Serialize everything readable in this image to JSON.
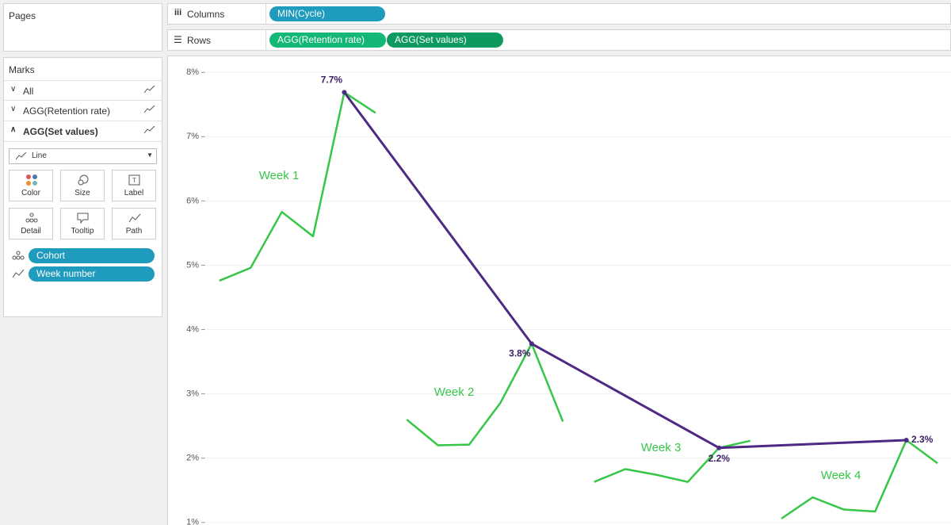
{
  "pages": {
    "title": "Pages"
  },
  "shelves": {
    "columns": {
      "label": "Columns",
      "pills": [
        "MIN(Cycle)"
      ]
    },
    "rows": {
      "label": "Rows",
      "pills": [
        "AGG(Retention rate)",
        "AGG(Set values)"
      ]
    }
  },
  "marks": {
    "title": "Marks",
    "cards": [
      "All",
      "AGG(Retention rate)",
      "AGG(Set values)"
    ],
    "mark_type": "Line",
    "buttons": [
      "Color",
      "Size",
      "Label",
      "Detail",
      "Tooltip",
      "Path"
    ],
    "pills": [
      "Cohort",
      "Week number"
    ]
  },
  "chart_data": {
    "type": "line",
    "ylim": [
      0.96,
      8.25
    ],
    "yticks": [
      {
        "value": 1,
        "label": "1%"
      },
      {
        "value": 2,
        "label": "2%"
      },
      {
        "value": 3,
        "label": "3%"
      },
      {
        "value": 4,
        "label": "4%"
      },
      {
        "value": 5,
        "label": "5%"
      },
      {
        "value": 6,
        "label": "6%"
      },
      {
        "value": 7,
        "label": "7%"
      },
      {
        "value": 8,
        "label": "8%"
      }
    ],
    "xlim": [
      -0.62,
      24.43
    ],
    "grid": true,
    "series": [
      {
        "name": "Week 1",
        "color": "#36c648",
        "x": [
          1,
          2,
          3,
          4,
          5,
          6
        ],
        "values": [
          4.76,
          4.96,
          5.83,
          5.45,
          7.69,
          7.37
        ]
      },
      {
        "name": "Week 2",
        "color": "#36c648",
        "x": [
          7,
          8,
          9,
          10,
          11,
          12
        ],
        "values": [
          2.6,
          2.2,
          2.21,
          2.86,
          3.78,
          2.57
        ]
      },
      {
        "name": "Week 3",
        "color": "#36c648",
        "x": [
          13,
          14,
          15,
          16,
          17,
          18
        ],
        "values": [
          1.63,
          1.83,
          1.74,
          1.63,
          2.16,
          2.27
        ]
      },
      {
        "name": "Week 4",
        "color": "#36c648",
        "x": [
          19,
          20,
          21,
          22,
          23,
          24
        ],
        "values": [
          1.06,
          1.39,
          1.2,
          1.17,
          2.28,
          1.92
        ]
      },
      {
        "color": "#4e2a84",
        "x": [
          5,
          11,
          17,
          23
        ],
        "values": [
          7.69,
          3.78,
          2.16,
          2.28
        ],
        "value_labels": [
          "7.7%",
          "3.8%",
          "2.2%",
          "2.3%"
        ]
      }
    ]
  }
}
